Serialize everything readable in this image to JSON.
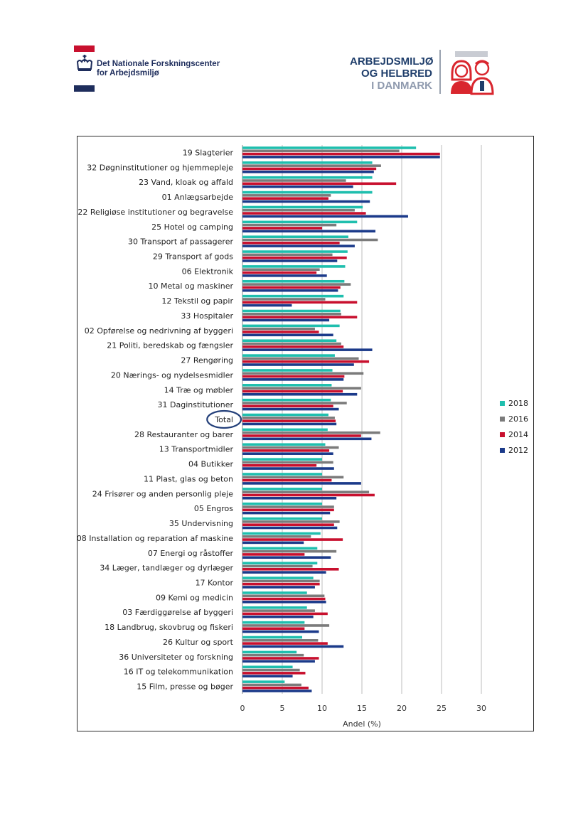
{
  "header": {
    "left_logo": {
      "line1": "Det Nationale Forskningscenter",
      "line2": "for Arbejdsmiljø",
      "colors": {
        "red": "#c8102e",
        "navy": "#1e2d5c"
      }
    },
    "right_logo": {
      "line1": "ARBEJDSMILJØ",
      "line2": "OG HELBRED",
      "line3": "I DANMARK",
      "colors": {
        "navy": "#1f3e6b",
        "grey": "#8f9aae",
        "red": "#d9262e"
      }
    }
  },
  "chart_data": {
    "type": "bar",
    "orientation": "horizontal",
    "xlabel": "Andel (%)",
    "xlim": [
      0,
      30
    ],
    "xticks": [
      0,
      5,
      10,
      15,
      20,
      25,
      30
    ],
    "grid": "vertical gridlines on",
    "legend_placement": "right",
    "highlight": "Total",
    "categories": [
      "19 Slagterier",
      "32 Døgninstitutioner og hjemmepleje",
      "23 Vand, kloak og affald",
      "01 Anlægsarbejde",
      "22 Religiøse institutioner og begravelse",
      "25 Hotel og camping",
      "30 Transport af passagerer",
      "29 Transport af gods",
      "06 Elektronik",
      "10 Metal og maskiner",
      "12 Tekstil og papir",
      "33 Hospitaler",
      "02 Opførelse og nedrivning af byggeri",
      "21 Politi, beredskab og fængsler",
      "27 Rengøring",
      "20 Nærings- og nydelsesmidler",
      "14 Træ og møbler",
      "31 Daginstitutioner",
      "Total",
      "28 Restauranter og barer",
      "13 Transportmidler",
      "04 Butikker",
      "11 Plast, glas og beton",
      "24 Frisører og anden personlig pleje",
      "05 Engros",
      "35 Undervisning",
      "08 Installation og reparation af maskine",
      "07 Energi og råstoffer",
      "34 Læger, tandlæger og dyrlæger",
      "17 Kontor",
      "09 Kemi og medicin",
      "03 Færdiggørelse af byggeri",
      "18 Landbrug, skovbrug og fiskeri",
      "26 Kultur og sport",
      "36 Universiteter og forskning",
      "16 IT og telekommunikation",
      "15 Film, presse og bøger"
    ],
    "series": [
      {
        "name": "2018",
        "color": "#1fbfae",
        "values": [
          21.8,
          16.3,
          16.3,
          16.3,
          15.1,
          14.4,
          13.3,
          13.2,
          12.9,
          12.8,
          12.7,
          12.3,
          12.2,
          11.8,
          11.6,
          11.3,
          11.2,
          11.1,
          10.8,
          10.7,
          10.4,
          10.0,
          10.0,
          10.0,
          10.0,
          10.0,
          9.8,
          9.4,
          9.4,
          8.9,
          8.1,
          8.1,
          7.8,
          7.5,
          6.8,
          6.3,
          5.3
        ]
      },
      {
        "name": "2016",
        "color": "#7b7b7b",
        "values": [
          19.7,
          17.4,
          13.0,
          11.1,
          14.1,
          11.8,
          17.0,
          11.3,
          9.7,
          13.6,
          10.4,
          12.4,
          9.1,
          12.4,
          14.6,
          15.2,
          14.9,
          13.1,
          11.6,
          17.3,
          12.1,
          11.4,
          12.7,
          15.9,
          11.5,
          12.2,
          8.6,
          11.8,
          8.8,
          9.7,
          10.3,
          9.1,
          10.9,
          9.5,
          7.7,
          7.2,
          7.4
        ]
      },
      {
        "name": "2014",
        "color": "#c8102e",
        "values": [
          24.8,
          16.8,
          19.3,
          10.8,
          15.5,
          10.0,
          12.2,
          13.1,
          9.3,
          12.3,
          14.4,
          14.4,
          9.6,
          12.7,
          15.9,
          12.8,
          12.6,
          11.4,
          11.7,
          14.9,
          10.9,
          9.3,
          11.2,
          16.6,
          11.5,
          11.5,
          12.6,
          7.8,
          12.1,
          9.7,
          10.4,
          10.7,
          7.8,
          10.7,
          9.6,
          7.9,
          8.3
        ]
      },
      {
        "name": "2012",
        "color": "#1b3a8a",
        "values": [
          24.8,
          16.5,
          13.9,
          16.0,
          20.8,
          16.7,
          14.1,
          11.9,
          10.6,
          12.0,
          6.2,
          10.9,
          11.4,
          16.3,
          14.0,
          12.7,
          14.4,
          12.1,
          11.8,
          16.2,
          11.4,
          11.5,
          14.9,
          11.8,
          11.0,
          11.9,
          7.7,
          11.1,
          10.5,
          9.1,
          10.5,
          8.9,
          9.6,
          12.7,
          9.1,
          6.3,
          8.7
        ]
      }
    ]
  }
}
